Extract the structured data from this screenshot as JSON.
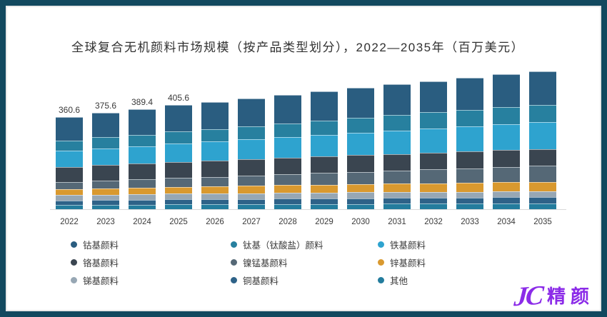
{
  "frame": {
    "border_color": "#12495F",
    "background": "#ffffff"
  },
  "title": "全球复合无机颜料市场规模（按产品类型划分），2022—2035年（百万美元）",
  "chart_data": {
    "type": "bar",
    "stacked": true,
    "title": "全球复合无机颜料市场规模（按产品类型划分），2022—2035年（百万美元）",
    "unit": "百万美元",
    "grid": false,
    "legend_position": "bottom",
    "ylim": [
      0,
      560
    ],
    "categories": [
      "2022",
      "2023",
      "2024",
      "2025",
      "2026",
      "2027",
      "2028",
      "2029",
      "2030",
      "2031",
      "2032",
      "2033",
      "2034",
      "2035"
    ],
    "totals": [
      360.6,
      375.6,
      389.4,
      405.6,
      417.6,
      431.9,
      446.3,
      460.4,
      474.2,
      487.6,
      500.4,
      512.7,
      525.7,
      538.0
    ],
    "data_labels": [
      "360.6",
      "375.6",
      "389.4",
      "405.6",
      "",
      "",
      "",
      "",
      "",
      "",
      "",
      "",
      "",
      ""
    ],
    "series": [
      {
        "name": "钴基颜料",
        "color": "#2A5D80",
        "values": [
          92.0,
          95.4,
          98.4,
          102.1,
          104.7,
          107.8,
          110.9,
          114.0,
          116.8,
          119.6,
          122.2,
          124.7,
          127.3,
          129.7
        ]
      },
      {
        "name": "钛基（钛酸盐）颜料",
        "color": "#27809F",
        "values": [
          41.5,
          43.5,
          45.5,
          47.8,
          49.6,
          51.7,
          53.8,
          55.9,
          58.0,
          60.1,
          62.1,
          64.2,
          66.3,
          68.3
        ]
      },
      {
        "name": "铁基颜料",
        "color": "#2EA3CF",
        "values": [
          62.0,
          65.3,
          68.4,
          72.0,
          74.9,
          78.3,
          81.7,
          85.1,
          88.6,
          92.0,
          95.3,
          98.6,
          102.1,
          105.4
        ]
      },
      {
        "name": "铬基颜料",
        "color": "#3A4550",
        "values": [
          58.4,
          59.7,
          60.7,
          62.0,
          62.5,
          63.3,
          64.0,
          64.7,
          65.2,
          65.5,
          65.7,
          65.7,
          65.8,
          65.6
        ]
      },
      {
        "name": "镍锰基颜料",
        "color": "#556876",
        "values": [
          28.1,
          30.4,
          32.6,
          35.2,
          37.5,
          40.0,
          42.6,
          45.3,
          48.1,
          50.9,
          53.6,
          56.5,
          59.5,
          62.4
        ]
      },
      {
        "name": "锌基颜料",
        "color": "#D9992F",
        "values": [
          23.4,
          24.5,
          25.5,
          26.7,
          27.6,
          28.7,
          29.8,
          30.9,
          32.0,
          33.1,
          34.1,
          35.1,
          36.1,
          37.1
        ]
      },
      {
        "name": "锑基颜料",
        "color": "#97A7B4",
        "values": [
          21.6,
          22.0,
          22.2,
          22.5,
          22.5,
          22.6,
          22.7,
          22.7,
          22.6,
          22.5,
          22.3,
          22.1,
          21.8,
          21.5
        ]
      },
      {
        "name": "铜基颜料",
        "color": "#2E6288",
        "values": [
          16.9,
          17.7,
          18.3,
          19.1,
          19.6,
          20.3,
          21.0,
          21.6,
          22.3,
          22.9,
          23.5,
          24.1,
          24.7,
          25.3
        ]
      },
      {
        "name": "其他",
        "color": "#237C9D",
        "values": [
          16.9,
          17.5,
          18.0,
          18.6,
          19.0,
          19.5,
          20.0,
          20.4,
          20.8,
          21.2,
          21.6,
          21.9,
          22.3,
          22.6
        ]
      }
    ],
    "stack_order_note": "first series rendered at top of stack, last series at bottom"
  },
  "legend": {
    "columns": 3
  },
  "logo": {
    "mark": "JC",
    "text": "精颜",
    "color": "#8B2BE8"
  }
}
